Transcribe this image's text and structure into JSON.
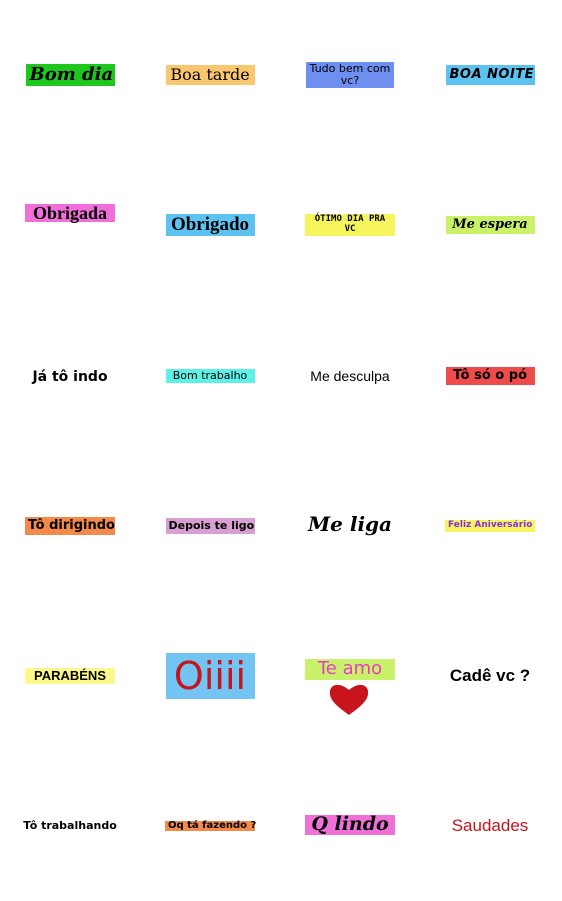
{
  "colors": {
    "green": "#1dc71d",
    "orange": "#f9c86e",
    "blue_soft": "#6f8ff0",
    "sky": "#5cc2f0",
    "pink": "#f06fd8",
    "yellow": "#f6f55e",
    "lime": "#c9f26a",
    "cyan": "#5cf2e8",
    "red": "#ef4b4b",
    "coral": "#f48a4a",
    "mauve": "#d8a0d0",
    "light_yellow": "#fbf98a",
    "oiiii_bg": "#73c4f2",
    "oiiii_text": "#c4141c",
    "teamo_text": "#e83ac8",
    "feliz_text": "#8a2be2",
    "saudades_text": "#c4141c",
    "heart": "#c8141c"
  },
  "stickers": [
    {
      "text": "Bom dia"
    },
    {
      "text": "Boa tarde"
    },
    {
      "text": "Tudo bem com vc?"
    },
    {
      "text": "BOA NOITE"
    },
    {
      "text": "Obrigada"
    },
    {
      "text": "Obrigado"
    },
    {
      "text": "ÓTIMO DIA PRA VC"
    },
    {
      "text": "Me espera"
    },
    {
      "text": "Já tô indo"
    },
    {
      "text": "Bom trabalho"
    },
    {
      "text": "Me desculpa"
    },
    {
      "text": "Tô só o pó"
    },
    {
      "text": "Tô dirigindo"
    },
    {
      "text": "Depois te ligo"
    },
    {
      "text": "Me liga"
    },
    {
      "text": "Feliz Aniversário"
    },
    {
      "text": "PARABÉNS"
    },
    {
      "text": "Oiiii"
    },
    {
      "text": "Te amo",
      "icon": "heart-icon"
    },
    {
      "text": "Cadê vc ?"
    },
    {
      "text": "Tô trabalhando"
    },
    {
      "text": "Oq tá fazendo ?"
    },
    {
      "text": "Q lindo"
    },
    {
      "text": "Saudades"
    }
  ]
}
